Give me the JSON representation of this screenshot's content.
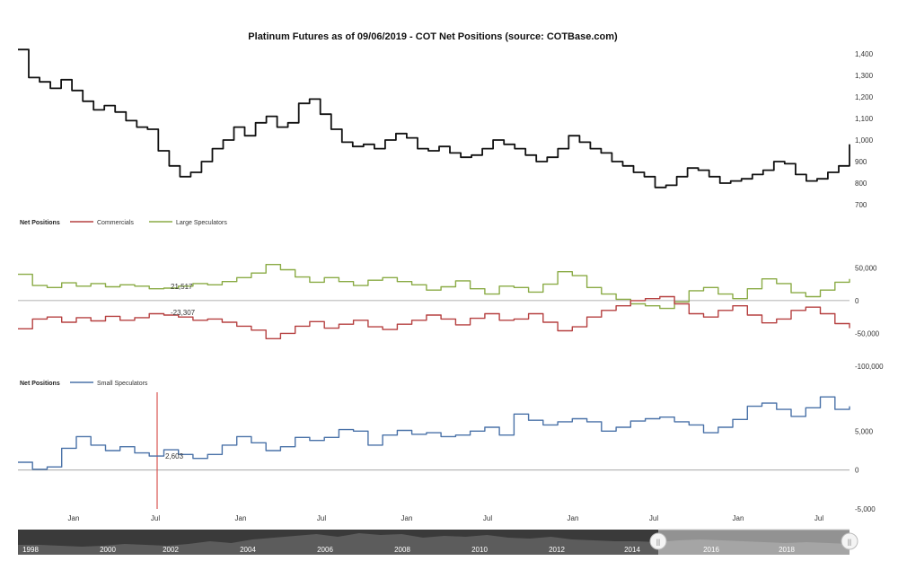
{
  "title": "Platinum Futures as of 09/06/2019 - COT Net Positions (source: COTBase.com)",
  "colors": {
    "price": "#111111",
    "commercials": "#b64040",
    "large_speculators": "#8aab45",
    "small_speculators": "#4a72a8",
    "crosshair": "#d9534f",
    "navigator_bg": "#3a3a3a",
    "navigator_fill": "#5c5c5c"
  },
  "chart_data": [
    {
      "id": "price",
      "type": "line",
      "x_range": [
        "2018-09-01",
        "2019-09-06"
      ],
      "y_ticks": [
        700,
        800,
        900,
        1000,
        1100,
        1200,
        1300,
        1400
      ],
      "y_tick_labels": [
        "700",
        "800",
        "900",
        "1,000",
        "1,100",
        "1,200",
        "1,300",
        "1,400"
      ],
      "ylim": [
        700,
        1450
      ],
      "series": [
        {
          "key": "price",
          "values": [
            1420,
            1290,
            1270,
            1240,
            1280,
            1230,
            1180,
            1140,
            1160,
            1130,
            1090,
            1060,
            1050,
            950,
            880,
            830,
            850,
            900,
            960,
            1000,
            1060,
            1020,
            1080,
            1110,
            1060,
            1080,
            1170,
            1190,
            1120,
            1050,
            990,
            970,
            980,
            960,
            1000,
            1030,
            1010,
            960,
            950,
            970,
            940,
            920,
            930,
            960,
            1000,
            980,
            960,
            930,
            900,
            920,
            960,
            1020,
            990,
            960,
            940,
            900,
            880,
            850,
            830,
            780,
            790,
            830,
            870,
            860,
            830,
            800,
            810,
            820,
            840,
            860,
            900,
            890,
            840,
            810,
            820,
            850,
            880,
            980
          ]
        }
      ]
    },
    {
      "id": "large_commercials",
      "type": "line",
      "legend_title": "Net Positions",
      "y_ticks": [
        50000,
        0,
        -50000,
        -100000
      ],
      "y_tick_labels": [
        "50,000",
        "0",
        "-50,000",
        "-100,000"
      ],
      "ylim": [
        -100000,
        60000
      ],
      "annotations": [
        "21,517",
        "-23,307"
      ],
      "series": [
        {
          "name": "Commercials",
          "key": "commercials",
          "values": [
            -43000,
            -28000,
            -25000,
            -33000,
            -26000,
            -31000,
            -24000,
            -30000,
            -26000,
            -20000,
            -22000,
            -25000,
            -30000,
            -28000,
            -33000,
            -39000,
            -45000,
            -58000,
            -50000,
            -39000,
            -32000,
            -42000,
            -36000,
            -30000,
            -40000,
            -44000,
            -36000,
            -30000,
            -22000,
            -28000,
            -37000,
            -27000,
            -20000,
            -30000,
            -28000,
            -20000,
            -33000,
            -46000,
            -40000,
            -25000,
            -15000,
            -8000,
            0,
            3000,
            6000,
            -5000,
            -20000,
            -25000,
            -15000,
            -8000,
            -22000,
            -34000,
            -28000,
            -15000,
            -10000,
            -20000,
            -35000,
            -42000
          ]
        },
        {
          "name": "Large Speculators",
          "key": "large_speculators",
          "values": [
            40000,
            23000,
            20000,
            27000,
            22000,
            26000,
            21000,
            24000,
            22000,
            18000,
            19000,
            22000,
            26000,
            24000,
            29000,
            35000,
            42000,
            55000,
            47000,
            36000,
            28000,
            35000,
            29000,
            23000,
            31000,
            35000,
            29000,
            24000,
            16000,
            21000,
            30000,
            18000,
            10000,
            22000,
            20000,
            13000,
            25000,
            44000,
            38000,
            20000,
            10000,
            2000,
            -5000,
            -8000,
            -12000,
            -2000,
            15000,
            20000,
            10000,
            3000,
            18000,
            33000,
            26000,
            12000,
            6000,
            16000,
            28000,
            33000
          ]
        }
      ]
    },
    {
      "id": "small_speculators",
      "type": "line",
      "legend_title": "Net Positions",
      "y_ticks": [
        5000,
        0,
        -5000
      ],
      "y_tick_labels": [
        "5,000",
        "0",
        "-5,000"
      ],
      "ylim": [
        -5000,
        10000
      ],
      "annotations": [
        "2,603"
      ],
      "series": [
        {
          "name": "Small Speculators",
          "key": "small_speculators",
          "values": [
            1000,
            100,
            400,
            2800,
            4300,
            3200,
            2500,
            3000,
            2200,
            1800,
            2600,
            2000,
            1500,
            2000,
            3200,
            4300,
            3500,
            2500,
            3000,
            4200,
            3800,
            4200,
            5200,
            5000,
            3200,
            4500,
            5100,
            4600,
            4800,
            4300,
            4500,
            5000,
            5500,
            4500,
            7200,
            6400,
            5800,
            6200,
            6600,
            6200,
            5000,
            5500,
            6300,
            6600,
            6800,
            6200,
            5800,
            4800,
            5500,
            6500,
            8200,
            8600,
            7800,
            6900,
            8000,
            9400,
            7800,
            8200
          ]
        }
      ]
    }
  ],
  "x_axis_labels": [
    "Jan",
    "Jul",
    "Jan",
    "Jul",
    "Jan",
    "Jul",
    "Jan",
    "Jul",
    "Jan",
    "Jul"
  ],
  "navigator": {
    "years": [
      "1998",
      "2000",
      "2002",
      "2004",
      "2006",
      "2008",
      "2010",
      "2012",
      "2014",
      "2016",
      "2018"
    ],
    "handle_glyph": "||"
  }
}
